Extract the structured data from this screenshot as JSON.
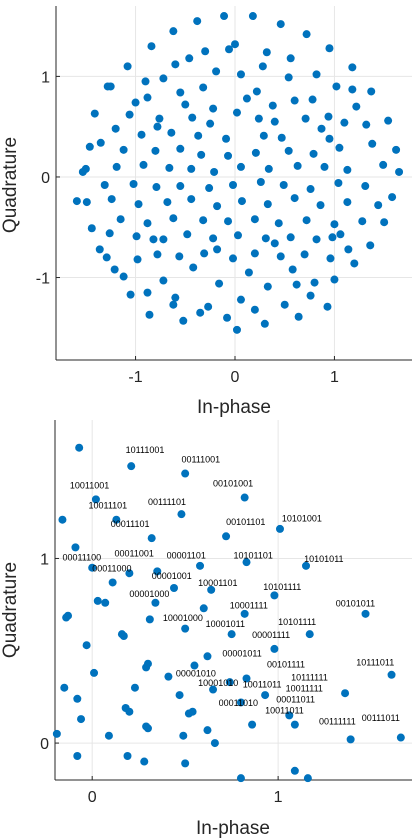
{
  "chart_data": [
    {
      "type": "scatter",
      "title": "",
      "xlabel": "In-phase",
      "ylabel": "Quadrature",
      "xlim": [
        -1.8,
        1.78
      ],
      "ylim": [
        -1.82,
        1.7
      ],
      "xticks": [
        -1,
        0,
        1
      ],
      "xtick_labels": [
        "-1",
        "0",
        "1"
      ],
      "yticks": [
        -1,
        0,
        1
      ],
      "ytick_labels": [
        "-1",
        "0",
        "1"
      ],
      "grid": true,
      "color": "#0072bd",
      "points": [
        [
          -0.06,
          1.27
        ],
        [
          0.32,
          1.24
        ],
        [
          -0.46,
          1.18
        ],
        [
          -0.19,
          1.05
        ],
        [
          0.06,
          1.02
        ],
        [
          -0.72,
          0.98
        ],
        [
          -1.25,
          0.9
        ],
        [
          -0.88,
          0.79
        ],
        [
          -0.55,
          0.84
        ],
        [
          -0.32,
          0.89
        ],
        [
          0.22,
          0.85
        ],
        [
          0.54,
          0.99
        ],
        [
          0.78,
          0.77
        ],
        [
          1.18,
          0.87
        ],
        [
          0.38,
          0.71
        ],
        [
          -1.06,
          0.62
        ],
        [
          -0.76,
          0.58
        ],
        [
          -0.43,
          0.59
        ],
        [
          -0.25,
          0.53
        ],
        [
          0.02,
          0.64
        ],
        [
          0.24,
          0.58
        ],
        [
          0.71,
          0.58
        ],
        [
          0.94,
          0.6
        ],
        [
          1.1,
          0.54
        ],
        [
          -0.94,
          0.42
        ],
        [
          -0.64,
          0.44
        ],
        [
          -0.37,
          0.41
        ],
        [
          -0.09,
          0.38
        ],
        [
          0.29,
          0.41
        ],
        [
          0.47,
          0.39
        ],
        [
          0.87,
          0.48
        ],
        [
          1.32,
          0.52
        ],
        [
          -1.35,
          0.34
        ],
        [
          -1.12,
          0.27
        ],
        [
          -0.8,
          0.26
        ],
        [
          -0.55,
          0.28
        ],
        [
          -0.34,
          0.22
        ],
        [
          -0.07,
          0.21
        ],
        [
          0.21,
          0.24
        ],
        [
          0.54,
          0.26
        ],
        [
          0.79,
          0.23
        ],
        [
          1.05,
          0.29
        ],
        [
          1.38,
          0.33
        ],
        [
          -1.5,
          0.08
        ],
        [
          -1.19,
          0.1
        ],
        [
          -0.92,
          0.12
        ],
        [
          -0.66,
          0.09
        ],
        [
          -0.44,
          0.08
        ],
        [
          -0.21,
          0.05
        ],
        [
          0.06,
          0.1
        ],
        [
          0.34,
          0.08
        ],
        [
          0.63,
          0.11
        ],
        [
          0.9,
          0.1
        ],
        [
          1.13,
          0.07
        ],
        [
          1.49,
          0.12
        ],
        [
          -1.31,
          -0.08
        ],
        [
          -1.02,
          -0.07
        ],
        [
          -0.79,
          -0.1
        ],
        [
          -0.55,
          -0.09
        ],
        [
          -0.26,
          -0.11
        ],
        [
          -0.02,
          -0.08
        ],
        [
          0.26,
          -0.05
        ],
        [
          0.49,
          -0.08
        ],
        [
          0.76,
          -0.12
        ],
        [
          1.04,
          -0.06
        ],
        [
          1.31,
          -0.09
        ],
        [
          -1.49,
          -0.25
        ],
        [
          -1.24,
          -0.22
        ],
        [
          -0.97,
          -0.27
        ],
        [
          -0.68,
          -0.25
        ],
        [
          -0.44,
          -0.22
        ],
        [
          -0.18,
          -0.29
        ],
        [
          0.07,
          -0.24
        ],
        [
          0.33,
          -0.27
        ],
        [
          0.6,
          -0.21
        ],
        [
          0.86,
          -0.28
        ],
        [
          1.13,
          -0.25
        ],
        [
          1.44,
          -0.28
        ],
        [
          -1.15,
          -0.42
        ],
        [
          -0.88,
          -0.46
        ],
        [
          -0.62,
          -0.41
        ],
        [
          -0.32,
          -0.43
        ],
        [
          -0.07,
          -0.44
        ],
        [
          0.2,
          -0.42
        ],
        [
          0.44,
          -0.46
        ],
        [
          0.72,
          -0.43
        ],
        [
          1.0,
          -0.47
        ],
        [
          1.28,
          -0.44
        ],
        [
          -0.99,
          -0.59
        ],
        [
          -0.72,
          -0.62
        ],
        [
          -0.48,
          -0.57
        ],
        [
          -0.22,
          -0.61
        ],
        [
          0.03,
          -0.58
        ],
        [
          0.31,
          -0.61
        ],
        [
          0.56,
          -0.6
        ],
        [
          0.82,
          -0.62
        ],
        [
          1.06,
          -0.57
        ],
        [
          -0.78,
          -0.77
        ],
        [
          -0.56,
          -0.79
        ],
        [
          -0.31,
          -0.76
        ],
        [
          -0.02,
          -0.81
        ],
        [
          0.2,
          -0.76
        ],
        [
          0.46,
          -0.79
        ],
        [
          0.7,
          -0.77
        ],
        [
          0.96,
          -0.81
        ],
        [
          -1.05,
          -1.17
        ],
        [
          -0.72,
          -1.03
        ],
        [
          -0.16,
          -1.06
        ],
        [
          0.33,
          -1.09
        ],
        [
          0.62,
          -1.07
        ],
        [
          -0.86,
          -1.37
        ],
        [
          -0.52,
          -1.43
        ],
        [
          -0.27,
          -1.29
        ],
        [
          0.02,
          -1.52
        ],
        [
          0.3,
          -1.46
        ],
        [
          0.64,
          -1.39
        ],
        [
          0.93,
          -1.29
        ],
        [
          -1.53,
          0.05
        ],
        [
          -1.59,
          -0.24
        ],
        [
          -1.44,
          -0.51
        ],
        [
          -1.36,
          -0.72
        ],
        [
          -1.21,
          -0.92
        ],
        [
          -1.46,
          0.3
        ],
        [
          -1.41,
          0.63
        ],
        [
          -1.28,
          0.9
        ],
        [
          -1.08,
          1.1
        ],
        [
          -0.84,
          1.3
        ],
        [
          -0.62,
          1.45
        ],
        [
          -0.38,
          1.55
        ],
        [
          -0.11,
          1.6
        ],
        [
          0.18,
          1.6
        ],
        [
          0.46,
          1.52
        ],
        [
          0.72,
          1.42
        ],
        [
          0.95,
          1.28
        ],
        [
          1.18,
          1.09
        ],
        [
          1.37,
          0.85
        ],
        [
          1.54,
          0.56
        ],
        [
          1.62,
          0.27
        ],
        [
          1.65,
          0.05
        ],
        [
          1.58,
          -0.2
        ],
        [
          1.5,
          -0.45
        ],
        [
          1.36,
          -0.68
        ],
        [
          1.2,
          -0.86
        ],
        [
          1.0,
          -1.02
        ],
        [
          0.76,
          -1.18
        ],
        [
          0.5,
          -1.27
        ],
        [
          0.2,
          -1.32
        ],
        [
          -0.08,
          -1.4
        ],
        [
          -0.35,
          -1.35
        ],
        [
          -0.62,
          -1.27
        ],
        [
          -0.88,
          -1.15
        ],
        [
          -1.12,
          -0.99
        ],
        [
          -1.29,
          -0.8
        ],
        [
          -0.9,
          0.95
        ],
        [
          -0.6,
          1.12
        ],
        [
          -0.3,
          1.25
        ],
        [
          0.0,
          1.32
        ],
        [
          0.28,
          1.1
        ],
        [
          0.56,
          1.18
        ],
        [
          0.82,
          1.02
        ],
        [
          1.02,
          0.9
        ],
        [
          -1.0,
          0.74
        ],
        [
          -0.5,
          0.72
        ],
        [
          0.12,
          0.78
        ],
        [
          0.6,
          0.76
        ],
        [
          1.22,
          0.7
        ],
        [
          -1.2,
          0.48
        ],
        [
          -0.78,
          0.5
        ],
        [
          -0.22,
          0.68
        ],
        [
          0.4,
          0.55
        ],
        [
          0.95,
          0.38
        ],
        [
          -0.98,
          -0.82
        ],
        [
          -0.42,
          -0.9
        ],
        [
          0.14,
          -0.95
        ],
        [
          0.58,
          -0.92
        ],
        [
          1.14,
          -0.72
        ],
        [
          -1.26,
          -0.56
        ],
        [
          -0.82,
          -0.62
        ],
        [
          -0.18,
          -0.72
        ],
        [
          0.4,
          -0.66
        ],
        [
          0.98,
          -0.6
        ],
        [
          -0.6,
          -1.2
        ],
        [
          0.06,
          -1.22
        ],
        [
          0.8,
          -1.05
        ]
      ]
    },
    {
      "type": "scatter",
      "title": "",
      "xlabel": "In-phase",
      "ylabel": "Quadrature",
      "xlim": [
        -0.2,
        1.72
      ],
      "ylim": [
        -0.2,
        1.75
      ],
      "xticks": [
        0,
        1
      ],
      "xtick_labels": [
        "0",
        "1"
      ],
      "yticks": [
        0,
        1
      ],
      "ytick_labels": [
        "0",
        "1"
      ],
      "grid": true,
      "color": "#0072bd",
      "points": [
        [
          -0.07,
          1.6
        ],
        [
          0.21,
          1.5
        ],
        [
          0.5,
          1.46
        ],
        [
          0.82,
          1.33
        ],
        [
          0.02,
          1.32
        ],
        [
          0.48,
          1.24
        ],
        [
          -0.16,
          1.21
        ],
        [
          0.13,
          1.21
        ],
        [
          0.72,
          1.12
        ],
        [
          0.32,
          1.11
        ],
        [
          1.01,
          1.16
        ],
        [
          -0.09,
          1.06
        ],
        [
          0.0,
          0.95
        ],
        [
          0.2,
          0.92
        ],
        [
          0.35,
          0.93
        ],
        [
          0.58,
          0.96
        ],
        [
          0.83,
          0.98
        ],
        [
          1.15,
          0.96
        ],
        [
          0.11,
          0.87
        ],
        [
          0.44,
          0.84
        ],
        [
          0.64,
          0.83
        ],
        [
          0.98,
          0.8
        ],
        [
          0.03,
          0.77
        ],
        [
          0.07,
          0.76
        ],
        [
          0.34,
          0.76
        ],
        [
          0.6,
          0.73
        ],
        [
          0.82,
          0.7
        ],
        [
          1.47,
          0.7
        ],
        [
          -0.13,
          0.69
        ],
        [
          -0.14,
          0.68
        ],
        [
          0.31,
          0.67
        ],
        [
          0.5,
          0.62
        ],
        [
          0.75,
          0.59
        ],
        [
          1.17,
          0.59
        ],
        [
          0.16,
          0.59
        ],
        [
          0.17,
          0.58
        ],
        [
          -0.03,
          0.53
        ],
        [
          0.98,
          0.51
        ],
        [
          0.62,
          0.47
        ],
        [
          0.3,
          0.43
        ],
        [
          0.29,
          0.41
        ],
        [
          0.55,
          0.42
        ],
        [
          0.01,
          0.38
        ],
        [
          0.41,
          0.36
        ],
        [
          0.83,
          0.35
        ],
        [
          1.61,
          0.37
        ],
        [
          0.74,
          0.33
        ],
        [
          -0.15,
          0.3
        ],
        [
          0.23,
          0.3
        ],
        [
          0.65,
          0.29
        ],
        [
          1.36,
          0.27
        ],
        [
          0.93,
          0.26
        ],
        [
          0.47,
          0.26
        ],
        [
          -0.08,
          0.24
        ],
        [
          0.8,
          0.22
        ],
        [
          0.18,
          0.19
        ],
        [
          0.54,
          0.17
        ],
        [
          0.2,
          0.17
        ],
        [
          0.52,
          0.16
        ],
        [
          1.06,
          0.15
        ],
        [
          -0.06,
          0.13
        ],
        [
          0.29,
          0.09
        ],
        [
          0.3,
          0.08
        ],
        [
          0.86,
          0.1
        ],
        [
          0.62,
          0.07
        ],
        [
          1.09,
          0.1
        ],
        [
          -0.19,
          0.05
        ],
        [
          0.09,
          0.04
        ],
        [
          0.49,
          0.04
        ],
        [
          1.66,
          0.03
        ],
        [
          1.39,
          0.02
        ],
        [
          0.66,
          0.0
        ],
        [
          -0.08,
          -0.07
        ],
        [
          0.19,
          -0.07
        ],
        [
          0.28,
          -0.1
        ],
        [
          0.5,
          -0.11
        ],
        [
          1.09,
          -0.15
        ],
        [
          0.8,
          -0.19
        ],
        [
          1.16,
          -0.19
        ]
      ],
      "annotations": [
        [
          0.18,
          1.57,
          "10111001"
        ],
        [
          0.48,
          1.52,
          "00111001"
        ],
        [
          -0.12,
          1.38,
          "10011001"
        ],
        [
          0.65,
          1.39,
          "00101001"
        ],
        [
          0.3,
          1.29,
          "00111101"
        ],
        [
          -0.02,
          1.27,
          "10011101"
        ],
        [
          0.1,
          1.17,
          "00011101"
        ],
        [
          0.72,
          1.18,
          "00101101"
        ],
        [
          1.02,
          1.2,
          "10101001"
        ],
        [
          -0.16,
          0.99,
          "00011100"
        ],
        [
          0.12,
          1.01,
          "00011001"
        ],
        [
          0.4,
          1.0,
          "00001101"
        ],
        [
          0.76,
          1.0,
          "10101101"
        ],
        [
          1.14,
          0.98,
          "10101011"
        ],
        [
          0.0,
          0.93,
          "00011000"
        ],
        [
          0.32,
          0.89,
          "00001001"
        ],
        [
          0.57,
          0.85,
          "10001101"
        ],
        [
          0.92,
          0.83,
          "10101111"
        ],
        [
          0.2,
          0.79,
          "00001000"
        ],
        [
          0.74,
          0.73,
          "10001111"
        ],
        [
          1.31,
          0.74,
          "00101011"
        ],
        [
          0.38,
          0.66,
          "10001000"
        ],
        [
          0.61,
          0.63,
          "10001011"
        ],
        [
          0.86,
          0.57,
          "00001111"
        ],
        [
          1.0,
          0.64,
          "10101111"
        ],
        [
          0.7,
          0.47,
          "00001011"
        ],
        [
          0.94,
          0.41,
          "00101111"
        ],
        [
          0.45,
          0.36,
          "00001010"
        ],
        [
          0.57,
          0.31,
          "10001010"
        ],
        [
          1.42,
          0.42,
          "10111011"
        ],
        [
          0.81,
          0.3,
          "10011011"
        ],
        [
          1.07,
          0.34,
          "10111111"
        ],
        [
          1.04,
          0.28,
          "10011111"
        ],
        [
          0.68,
          0.2,
          "00011010"
        ],
        [
          0.93,
          0.16,
          "10011011"
        ],
        [
          0.99,
          0.22,
          "00011011"
        ],
        [
          1.22,
          0.1,
          "00111111"
        ],
        [
          1.45,
          0.12,
          "00111011"
        ]
      ]
    }
  ]
}
